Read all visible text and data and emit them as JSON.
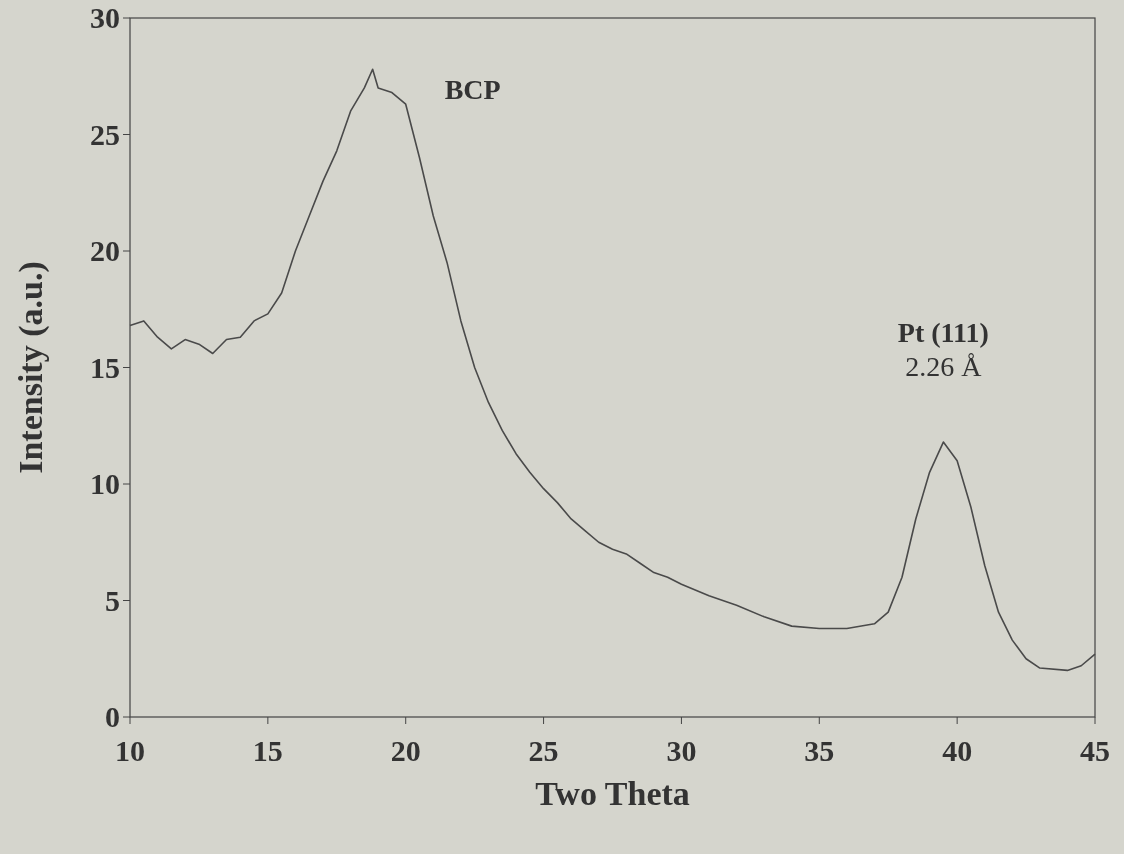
{
  "chart_data": {
    "type": "line",
    "xlabel": "Two Theta",
    "ylabel": "Intensity (a.u.)",
    "xlim": [
      10,
      45
    ],
    "ylim": [
      0,
      30
    ],
    "xticks": [
      10,
      15,
      20,
      25,
      30,
      35,
      40,
      45
    ],
    "yticks": [
      0,
      5,
      10,
      15,
      20,
      25,
      30
    ],
    "grid": false,
    "marker": "none",
    "line_style": "solid",
    "annotations": [
      "BCP",
      "Pt (111)\n2.26 Å"
    ],
    "series": [
      {
        "color": "#4a4a4a",
        "x": [
          10,
          10.5,
          11,
          11.5,
          12,
          12.5,
          13,
          13.5,
          14,
          14.5,
          15,
          15.5,
          16,
          16.5,
          17,
          17.5,
          18,
          18.5,
          18.8,
          19,
          19.5,
          20,
          20.5,
          21,
          21.5,
          22,
          22.5,
          23,
          23.5,
          24,
          24.5,
          25,
          25.5,
          26,
          26.5,
          27,
          27.5,
          28,
          28.5,
          29,
          29.5,
          30,
          31,
          32,
          33,
          34,
          35,
          36,
          37,
          37.5,
          38,
          38.5,
          39,
          39.5,
          40,
          40.5,
          41,
          41.5,
          42,
          42.5,
          43,
          44,
          44.5,
          45
        ],
        "values": [
          16.8,
          17,
          16.3,
          15.8,
          16.2,
          16,
          15.6,
          16.2,
          16.3,
          17,
          17.3,
          18.2,
          20,
          21.5,
          23,
          24.3,
          26,
          27,
          27.8,
          27,
          26.8,
          26.3,
          24,
          21.5,
          19.5,
          17,
          15,
          13.5,
          12.3,
          11.3,
          10.5,
          9.8,
          9.2,
          8.5,
          8,
          7.5,
          7.2,
          7,
          6.6,
          6.2,
          6,
          5.7,
          5.2,
          4.8,
          4.3,
          3.9,
          3.8,
          3.8,
          4,
          4.5,
          6,
          8.5,
          10.5,
          11.8,
          11,
          9,
          6.5,
          4.5,
          3.3,
          2.5,
          2.1,
          2,
          2.2,
          2.7
        ]
      }
    ]
  }
}
